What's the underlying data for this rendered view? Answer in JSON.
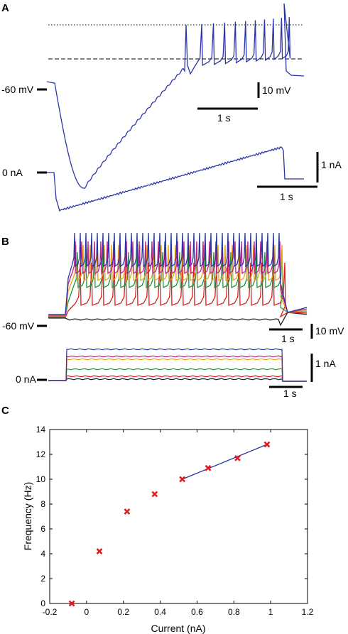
{
  "panels": {
    "a": {
      "label": "A",
      "voltage_label": "-60 mV",
      "current_label": "0 nA",
      "scale_v": "10 mV",
      "scale_t1": "1 s",
      "scale_i": "1 nA",
      "scale_t2": "1 s"
    },
    "b": {
      "label": "B",
      "voltage_label": "-60 mV",
      "current_label": "0 nA",
      "scale_v": "10 mV",
      "scale_t1": "1 s",
      "scale_i": "1 nA",
      "scale_t2": "1 s"
    },
    "c": {
      "label": "C"
    }
  },
  "colors": {
    "trace_blue": "#2b35a8",
    "red": "#e01b1b",
    "green": "#1f9a3a",
    "orange": "#f0a010",
    "magenta": "#c0208a",
    "black": "#222222"
  },
  "chart_data": {
    "type": "scatter",
    "title": "",
    "xlabel": "Current (nA)",
    "ylabel": "Frequency (Hz)",
    "xlim": [
      -0.2,
      1.2
    ],
    "ylim": [
      0,
      14
    ],
    "xticks": [
      "-0.2",
      "0",
      "0.2",
      "0.4",
      "0.6",
      "0.8",
      "1",
      "1.2"
    ],
    "yticks": [
      "0",
      "2",
      "4",
      "6",
      "8",
      "10",
      "12",
      "14"
    ],
    "points": [
      {
        "x": -0.08,
        "y": 0.0
      },
      {
        "x": 0.07,
        "y": 4.2
      },
      {
        "x": 0.22,
        "y": 7.4
      },
      {
        "x": 0.37,
        "y": 8.8
      },
      {
        "x": 0.52,
        "y": 10.0
      },
      {
        "x": 0.66,
        "y": 10.9
      },
      {
        "x": 0.82,
        "y": 11.7
      },
      {
        "x": 0.98,
        "y": 12.8
      }
    ],
    "fit_line": {
      "x": [
        0.52,
        0.98
      ],
      "y": [
        10.0,
        12.8
      ]
    },
    "grid": false
  }
}
